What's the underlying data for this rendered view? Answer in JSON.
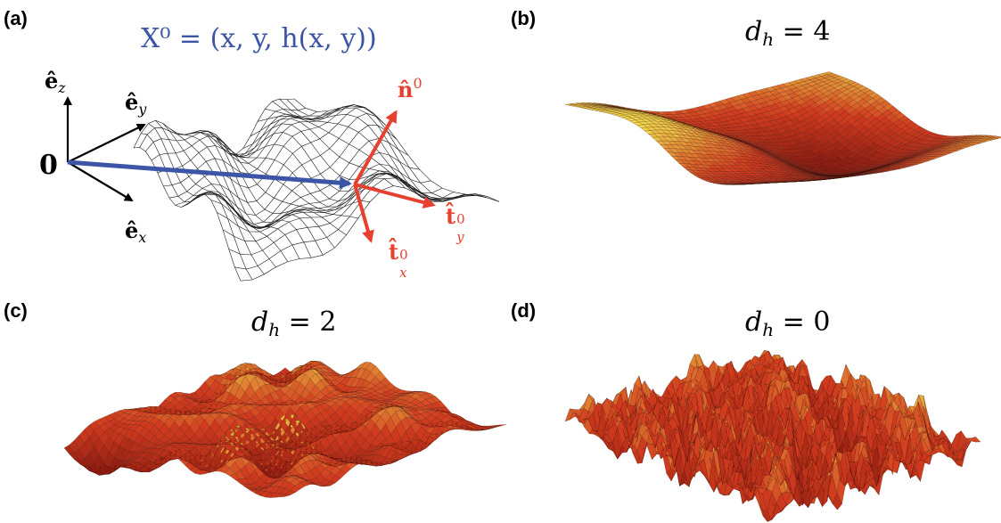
{
  "panels": {
    "a": {
      "label": "(a)",
      "position_vector": "X⁰ = (x, y, h(x, y))",
      "origin": "0",
      "basis": {
        "ez": "ê",
        "ey": "ê",
        "ex": "ê",
        "ez_sub": "z",
        "ey_sub": "y",
        "ex_sub": "x"
      },
      "local": {
        "n": "n̂",
        "n_sup": "0",
        "ty": "t̂",
        "ty_sub": "y",
        "ty_sup": "0",
        "tx": "t̂",
        "tx_sub": "x",
        "tx_sup": "0"
      }
    },
    "b": {
      "label": "(b)",
      "lhs": "d",
      "sub": "h",
      "rhs": " = 4"
    },
    "c": {
      "label": "(c)",
      "lhs": "d",
      "sub": "h",
      "rhs": " = 2"
    },
    "d": {
      "label": "(d)",
      "lhs": "d",
      "sub": "h",
      "rhs": " = 0"
    }
  },
  "colors": {
    "position_vector": "#3d55a6",
    "local_frame": "#e8402f",
    "surface_dark": "#8a1a10",
    "surface_mid": "#d23b1e",
    "surface_light": "#f2d64a"
  }
}
